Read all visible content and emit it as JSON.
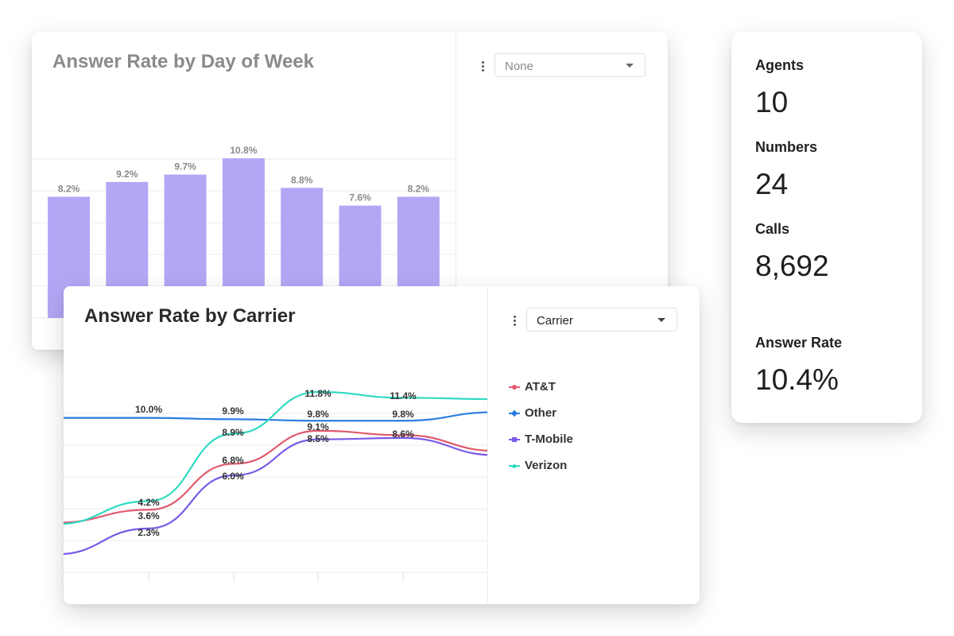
{
  "day_chart": {
    "title": "Answer Rate by Day of Week",
    "dropdown_value": "None",
    "bar_color": "#b3a7f5"
  },
  "carrier_chart": {
    "title": "Answer Rate by Carrier",
    "dropdown_value": "Carrier",
    "legend": [
      {
        "label": "AT&T",
        "color": "#e05a6d"
      },
      {
        "label": "Other",
        "color": "#2b7de0"
      },
      {
        "label": "T-Mobile",
        "color": "#7a5ae8"
      },
      {
        "label": "Verizon",
        "color": "#2edac0"
      }
    ]
  },
  "stats": {
    "agents_label": "Agents",
    "agents_value": "10",
    "numbers_label": "Numbers",
    "numbers_value": "24",
    "calls_label": "Calls",
    "calls_value": "8,692",
    "answer_rate_label": "Answer Rate",
    "answer_rate_value": "10.4%"
  },
  "chart_data": [
    {
      "type": "bar",
      "title": "Answer Rate by Day of Week",
      "values": [
        8.2,
        9.2,
        9.7,
        10.8,
        8.8,
        7.6,
        8.2
      ],
      "labels": [
        "8.2%",
        "9.2%",
        "9.7%",
        "10.8%",
        "8.8%",
        "7.6%",
        "8.2%"
      ],
      "grid": true
    },
    {
      "type": "line",
      "title": "Answer Rate by Carrier",
      "series": [
        {
          "name": "AT&T",
          "values": [
            null,
            3.6,
            6.8,
            9.1,
            null
          ]
        },
        {
          "name": "Other",
          "values": [
            10.0,
            null,
            9.9,
            9.8,
            9.8
          ]
        },
        {
          "name": "T-Mobile",
          "values": [
            null,
            2.3,
            6.0,
            8.5,
            8.6
          ]
        },
        {
          "name": "Verizon",
          "values": [
            null,
            4.2,
            8.9,
            11.8,
            11.4
          ]
        }
      ],
      "grid": true,
      "legend": "right"
    }
  ]
}
